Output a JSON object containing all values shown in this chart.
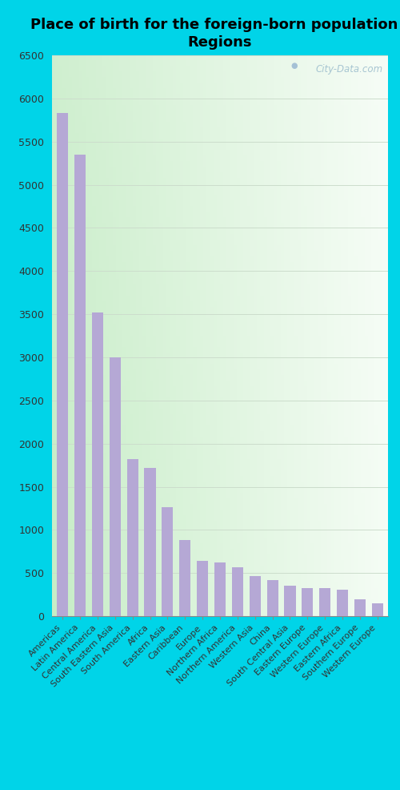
{
  "title": "Place of birth for the foreign-born population -\nRegions",
  "categories": [
    "Americas",
    "Latin America",
    "Central America",
    "South Eastern Asia",
    "South America",
    "Africa",
    "Eastern Asia",
    "Caribbean",
    "Europe",
    "Northern Africa",
    "Northern America",
    "Western Asia",
    "China",
    "South Central Asia",
    "Eastern Europe",
    "Western Europe",
    "Eastern Africa",
    "Southern Europe",
    "Western Europe"
  ],
  "values": [
    5830,
    5350,
    3520,
    3000,
    1820,
    1720,
    1260,
    880,
    640,
    620,
    570,
    465,
    415,
    355,
    330,
    330,
    310,
    200,
    145
  ],
  "bar_color": "#b5a8d5",
  "bg_color_fig": "#00d4e8",
  "ylim": [
    0,
    6500
  ],
  "yticks": [
    0,
    500,
    1000,
    1500,
    2000,
    2500,
    3000,
    3500,
    4000,
    4500,
    5000,
    5500,
    6000,
    6500
  ],
  "watermark": "City-Data.com",
  "title_fontsize": 13,
  "tick_label_fontsize": 8,
  "ytick_fontsize": 9,
  "gradient_colors": [
    "#c8eec8",
    "#e8f5e8",
    "#f5faf5",
    "#ffffff"
  ],
  "grid_color": "#ccddcc",
  "grid_linewidth": 0.7
}
